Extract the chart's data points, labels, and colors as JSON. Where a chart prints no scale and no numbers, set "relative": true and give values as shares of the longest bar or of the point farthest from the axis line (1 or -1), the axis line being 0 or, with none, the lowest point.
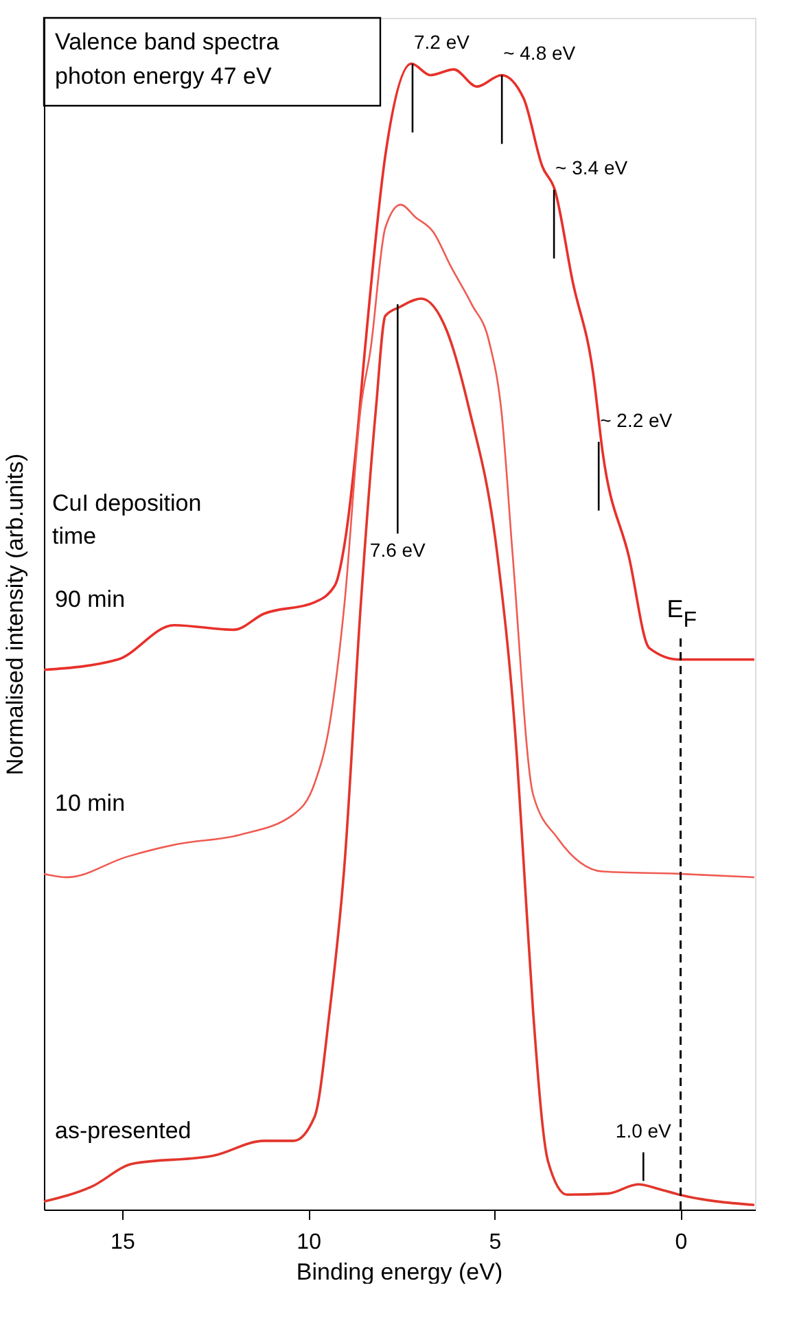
{
  "chart_data": {
    "type": "line",
    "relative": true,
    "title": "Valence band spectra",
    "subtitle": "photon energy 47 eV",
    "xlabel": "Binding energy (eV)",
    "ylabel": "Normalised intensity (arb.units)",
    "legend_title": "CuI deposition time",
    "xlim": [
      17.1,
      -2
    ],
    "xticks": [
      15,
      10,
      5,
      0
    ],
    "tick_labels": "x",
    "grid": false,
    "line_style": "solid",
    "marker": "none",
    "series": [
      {
        "name": "90 min",
        "color": "#e8302a",
        "x": [
          17.1,
          15.12,
          13.61,
          12.0,
          11.19,
          9.83,
          9.28,
          9.03,
          8.73,
          8.48,
          7.93,
          7.23,
          6.72,
          6.09,
          5.47,
          4.81,
          4.22,
          3.71,
          3.38,
          2.9,
          2.35,
          2.09,
          1.39,
          0.84,
          0.04,
          -1.98
        ],
        "values": [
          0.471,
          0.48,
          0.51,
          0.506,
          0.52,
          0.53,
          0.545,
          0.58,
          0.66,
          0.75,
          0.92,
          1.0,
          0.99,
          0.995,
          0.98,
          0.99,
          0.97,
          0.91,
          0.89,
          0.81,
          0.73,
          0.66,
          0.57,
          0.49,
          0.48,
          0.48
        ]
      },
      {
        "name": "10 min",
        "color": "#ef5b52",
        "x": [
          17.1,
          16.48,
          14.86,
          13.5,
          11.85,
          10.39,
          9.83,
          9.43,
          9.03,
          8.59,
          8.33,
          7.93,
          7.52,
          7.12,
          6.64,
          6.17,
          5.61,
          5.14,
          4.81,
          4.51,
          3.96,
          3.3,
          2.09,
          0.04,
          -1.98
        ],
        "values": [
          0.293,
          0.29,
          0.308,
          0.319,
          0.327,
          0.345,
          0.372,
          0.423,
          0.528,
          0.7,
          0.75,
          0.857,
          0.877,
          0.866,
          0.853,
          0.823,
          0.79,
          0.757,
          0.696,
          0.571,
          0.362,
          0.324,
          0.295,
          0.293,
          0.29
        ]
      },
      {
        "name": "as-presented",
        "color": "#e2362c",
        "x": [
          17.1,
          15.82,
          14.72,
          12.55,
          11.19,
          10.39,
          9.83,
          9.43,
          9.03,
          8.59,
          8.18,
          7.93,
          7.52,
          6.97,
          6.28,
          5.69,
          4.92,
          4.4,
          4.18,
          3.96,
          3.56,
          3.05,
          1.94,
          1.14,
          0.59,
          0.04,
          -1.98
        ],
        "values": [
          0.007,
          0.02,
          0.04,
          0.047,
          0.06,
          0.06,
          0.081,
          0.172,
          0.3,
          0.528,
          0.7,
          0.78,
          0.788,
          0.795,
          0.767,
          0.7,
          0.571,
          0.397,
          0.284,
          0.172,
          0.042,
          0.013,
          0.014,
          0.022,
          0.018,
          0.013,
          0.004
        ]
      }
    ],
    "ref_lines": [
      {
        "axis": "x",
        "value": 0,
        "label": "E$_{F}$",
        "color": "#000000",
        "line_style": "dashed"
      }
    ],
    "annotations": [
      {
        "text": "7.2 eV",
        "x": 7.2,
        "y": 1.0
      },
      {
        "text": "~ 4.8 eV",
        "x": 4.8,
        "y": 0.99
      },
      {
        "text": "~ 3.4 eV",
        "x": 3.4,
        "y": 0.89
      },
      {
        "text": "~ 2.2 eV",
        "x": 2.2,
        "y": 0.67
      },
      {
        "text": "7.6 eV",
        "x": 7.6,
        "y": 0.79
      },
      {
        "text": "1.0 eV",
        "x": 1.0,
        "y": 0.025
      }
    ]
  }
}
